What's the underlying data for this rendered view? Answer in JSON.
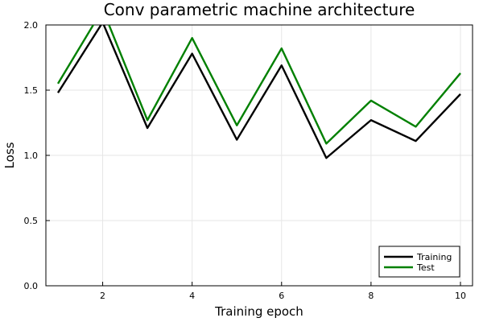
{
  "chart_data": {
    "type": "line",
    "title": "Conv parametric machine architecture",
    "xlabel": "Training epoch",
    "ylabel": "Loss",
    "x": [
      1,
      2,
      3,
      4,
      5,
      6,
      7,
      8,
      9,
      10
    ],
    "xlim": [
      0.73,
      10.27
    ],
    "ylim": [
      0.0,
      2.0
    ],
    "xticks": [
      2,
      4,
      6,
      8,
      10
    ],
    "xtick_labels": [
      "2",
      "4",
      "6",
      "8",
      "10"
    ],
    "yticks": [
      0.0,
      0.5,
      1.0,
      1.5,
      2.0
    ],
    "ytick_labels": [
      "0.0",
      "0.5",
      "1.0",
      "1.5",
      "2.0"
    ],
    "grid": true,
    "legend_position": "bottom-right",
    "series": [
      {
        "name": "Training",
        "color": "#000000",
        "values": [
          1.48,
          2.02,
          1.21,
          1.78,
          1.12,
          1.69,
          0.98,
          1.27,
          1.11,
          1.47
        ]
      },
      {
        "name": "Test",
        "color": "#008000",
        "values": [
          1.55,
          2.12,
          1.27,
          1.9,
          1.23,
          1.82,
          1.09,
          1.42,
          1.22,
          1.63
        ]
      }
    ]
  }
}
